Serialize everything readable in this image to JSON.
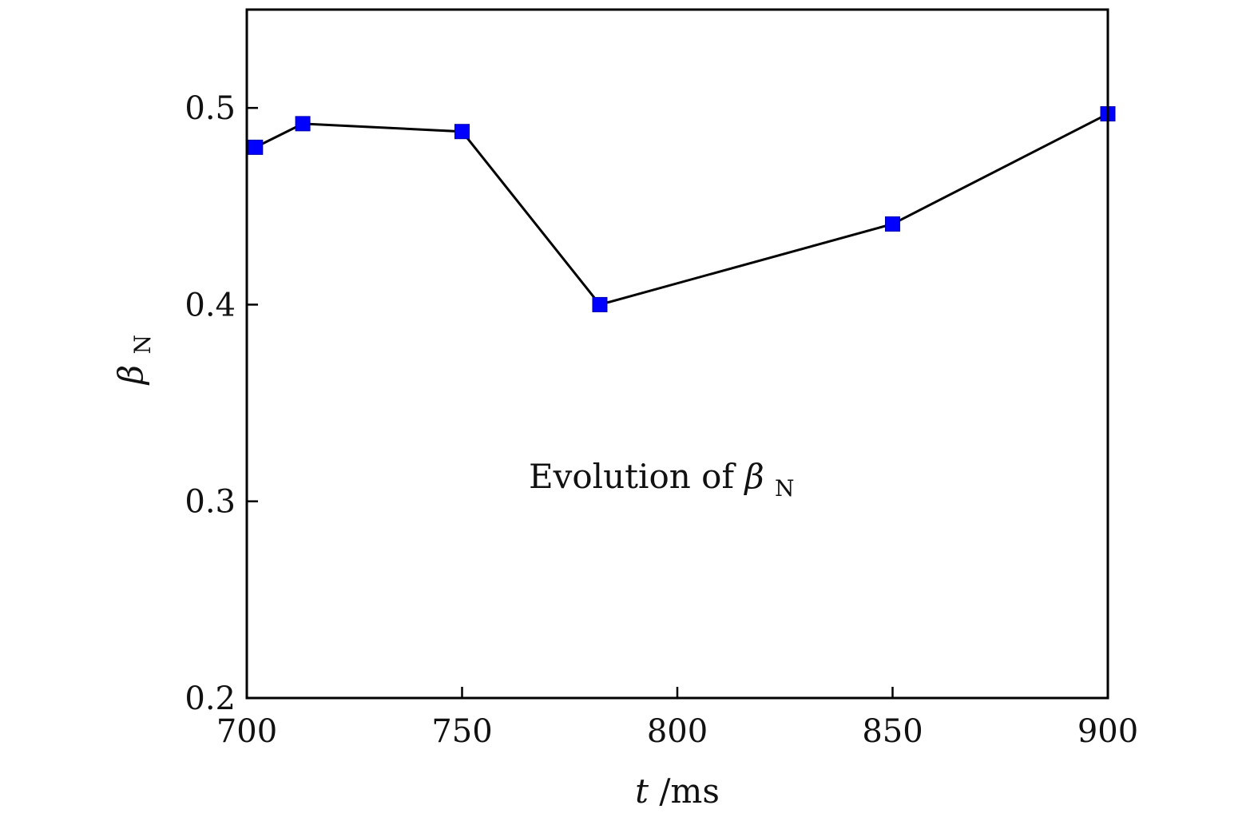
{
  "chart_data": {
    "type": "line",
    "title": "",
    "xlabel": {
      "var": "t",
      "unit": "/ms"
    },
    "ylabel": {
      "base": "β",
      "sub": "N"
    },
    "xlim": [
      700,
      900
    ],
    "ylim": [
      0.2,
      0.55
    ],
    "x_ticks": [
      700,
      750,
      800,
      850,
      900
    ],
    "x_tick_labels": [
      "700",
      "750",
      "800",
      "850",
      "900"
    ],
    "y_ticks": [
      0.2,
      0.3,
      0.4,
      0.5
    ],
    "y_tick_labels": [
      "0.2",
      "0.3",
      "0.4",
      "0.5"
    ],
    "grid": false,
    "series": [
      {
        "x": [
          702,
          713,
          750,
          782,
          850,
          900
        ],
        "y": [
          0.48,
          0.492,
          0.488,
          0.4,
          0.441,
          0.497
        ],
        "marker": "square",
        "marker_color": "#0000ff",
        "line_color": "#000000"
      }
    ],
    "annotation": {
      "text": "Evolution of ",
      "symbol": "β",
      "sub": "N"
    }
  }
}
